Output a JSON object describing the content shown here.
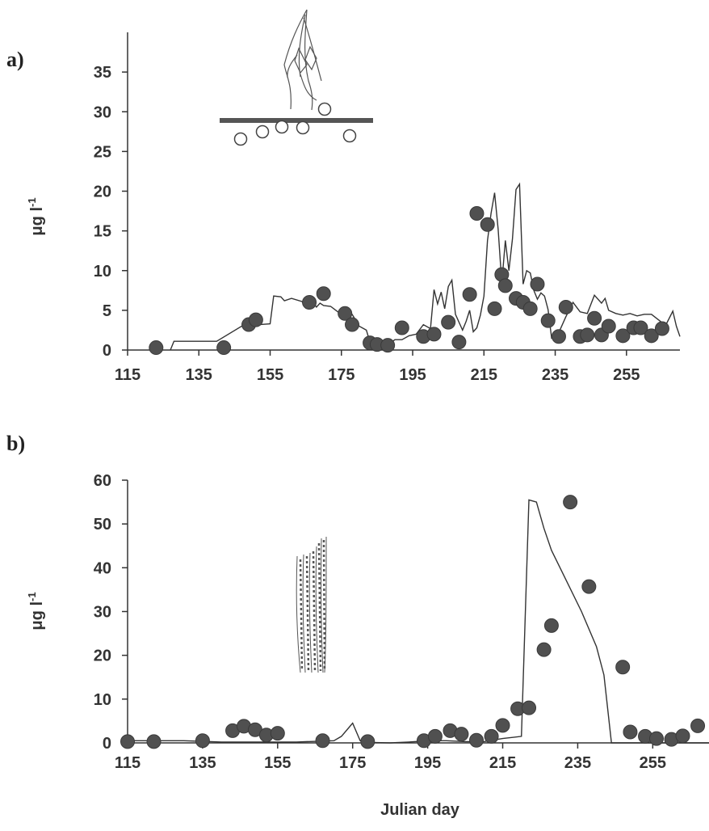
{
  "chart_data": [
    {
      "panel_label": "a)",
      "type": "line+scatter",
      "ylabel": "μg l",
      "ylabel_exponent": "-1",
      "xlabel": "",
      "xlim": [
        115,
        270
      ],
      "ylim": [
        0,
        40
      ],
      "x_ticks": [
        115,
        135,
        155,
        175,
        195,
        215,
        235,
        255
      ],
      "y_ticks": [
        0,
        5,
        10,
        15,
        20,
        25,
        30,
        35
      ],
      "line": {
        "x": [
          127,
          128,
          140,
          147,
          152,
          155,
          156,
          158,
          159,
          161,
          164,
          165,
          166,
          167,
          168,
          169,
          170,
          172,
          174,
          176,
          178,
          180,
          182,
          183,
          184,
          186,
          188,
          190,
          192,
          194,
          196,
          198,
          200,
          201,
          202,
          203,
          204,
          205,
          206,
          207,
          208,
          209,
          210,
          211,
          212,
          213,
          214,
          215,
          216,
          217,
          218,
          219,
          220,
          221,
          222,
          223,
          224,
          225,
          226,
          227,
          228,
          229,
          230,
          231,
          232,
          233,
          234,
          235,
          236,
          238,
          240,
          242,
          244,
          246,
          248,
          249,
          250,
          252,
          254,
          256,
          258,
          260,
          262,
          264,
          266,
          268,
          269,
          270
        ],
        "y": [
          0,
          1.1,
          1.1,
          3.0,
          3.2,
          3.3,
          6.8,
          6.7,
          6.2,
          6.5,
          6.1,
          5.3,
          5.8,
          6.0,
          5.4,
          5.9,
          5.6,
          5.5,
          4.8,
          4.4,
          4.5,
          3.0,
          2.5,
          1.0,
          0.7,
          0.5,
          0.6,
          1.3,
          1.3,
          1.8,
          2.0,
          3.2,
          2.7,
          7.6,
          5.8,
          7.3,
          5.2,
          8.0,
          8.8,
          4.5,
          3.5,
          2.5,
          3.6,
          5.0,
          2.3,
          2.8,
          4.4,
          6.8,
          13.8,
          17.2,
          19.8,
          15.2,
          8.4,
          13.8,
          10.0,
          14.0,
          20.2,
          20.9,
          8.3,
          10.0,
          9.7,
          7.5,
          6.4,
          7.2,
          6.8,
          5.1,
          1.5,
          1.8,
          2.2,
          4.2,
          6.0,
          4.8,
          4.6,
          6.9,
          5.9,
          6.5,
          5.0,
          4.6,
          4.4,
          4.6,
          4.3,
          4.5,
          4.5,
          3.8,
          3.1,
          4.9,
          3.0,
          1.7
        ]
      },
      "points": {
        "x": [
          123,
          142,
          149,
          151,
          166,
          170,
          176,
          178,
          183,
          185,
          188,
          192,
          198,
          201,
          205,
          208,
          211,
          213,
          216,
          218,
          220,
          221,
          224,
          226,
          228,
          230,
          233,
          236,
          238,
          242,
          244,
          246,
          248,
          250,
          254,
          257,
          259,
          262,
          265
        ],
        "y": [
          0.3,
          0.3,
          3.2,
          3.8,
          6.0,
          7.1,
          4.6,
          3.2,
          0.9,
          0.7,
          0.6,
          2.8,
          1.7,
          2.0,
          3.5,
          1.0,
          7.0,
          17.2,
          15.8,
          5.2,
          9.5,
          8.1,
          6.5,
          6.0,
          5.2,
          8.3,
          3.7,
          1.7,
          5.4,
          1.7,
          1.9,
          4.0,
          1.9,
          3.0,
          1.8,
          2.8,
          2.8,
          1.8,
          2.7
        ]
      }
    },
    {
      "panel_label": "b)",
      "type": "line+scatter",
      "ylabel": "μg l",
      "ylabel_exponent": "-1",
      "xlabel": "Julian day",
      "xlim": [
        115,
        270
      ],
      "ylim": [
        0,
        60
      ],
      "x_ticks": [
        115,
        135,
        155,
        175,
        195,
        215,
        235,
        255
      ],
      "y_ticks": [
        0,
        10,
        20,
        30,
        40,
        50,
        60
      ],
      "line": {
        "x": [
          115,
          130,
          140,
          150,
          160,
          170,
          172,
          174,
          175,
          177,
          180,
          185,
          190,
          195,
          200,
          205,
          210,
          215,
          220,
          222,
          224,
          226,
          228,
          232,
          236,
          240,
          242,
          244,
          250,
          260,
          270
        ],
        "y": [
          0.5,
          0.5,
          0.2,
          0.2,
          0.2,
          0.5,
          1.5,
          3.5,
          4.5,
          0.5,
          0.1,
          0,
          0.2,
          0.5,
          0.5,
          0.3,
          0.3,
          1.0,
          1.5,
          55.5,
          55,
          49,
          44,
          37,
          30,
          22,
          15.5,
          0,
          0,
          0,
          0
        ]
      },
      "points": {
        "x": [
          115,
          122,
          135,
          143,
          146,
          149,
          152,
          155,
          167,
          179,
          194,
          197,
          201,
          204,
          208,
          212,
          215,
          219,
          222,
          226,
          228,
          233,
          238,
          247,
          249,
          253,
          256,
          260,
          263,
          267
        ],
        "y": [
          0.3,
          0.3,
          0.5,
          2.8,
          3.8,
          3.0,
          1.8,
          2.2,
          0.5,
          0.3,
          0.5,
          1.5,
          2.8,
          2.0,
          0.6,
          1.5,
          4.0,
          7.8,
          8.0,
          21.3,
          26.8,
          55.0,
          35.7,
          17.3,
          2.5,
          1.5,
          1.0,
          0.8,
          1.6,
          3.9
        ]
      }
    }
  ]
}
